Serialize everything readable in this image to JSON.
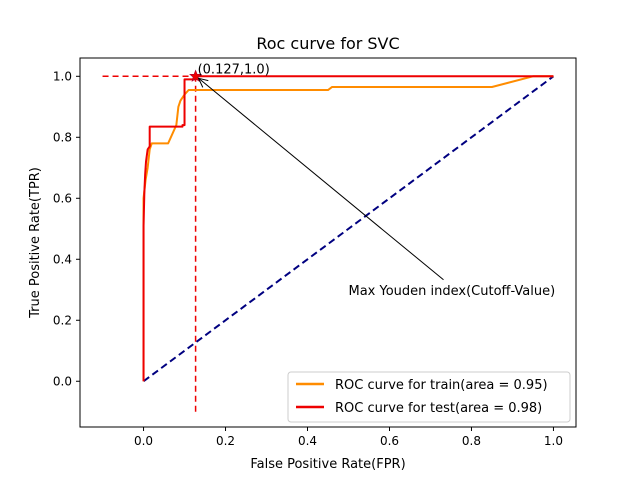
{
  "chart_data": {
    "type": "line",
    "title": "Roc curve for SVC",
    "xlabel": "False Positive Rate(FPR)",
    "ylabel": "True Positive Rate(TPR)",
    "xlim": [
      -0.155,
      1.055
    ],
    "ylim": [
      -0.15,
      1.06
    ],
    "xticks": [
      0.0,
      0.2,
      0.4,
      0.6,
      0.8,
      1.0
    ],
    "xtick_labels": [
      "0.0",
      "0.2",
      "0.4",
      "0.6",
      "0.8",
      "1.0"
    ],
    "yticks": [
      0.0,
      0.2,
      0.4,
      0.6,
      0.8,
      1.0
    ],
    "ytick_labels": [
      "0.0",
      "0.2",
      "0.4",
      "0.6",
      "0.8",
      "1.0"
    ],
    "grid": false,
    "legend_position": "lower-right",
    "series": [
      {
        "name": "ROC curve for train(area = 0.95)",
        "color": "#ff8c00",
        "style": "solid",
        "x": [
          0.0,
          0.0,
          0.005,
          0.01,
          0.015,
          0.02,
          0.05,
          0.06,
          0.08,
          0.085,
          0.09,
          0.1,
          0.11,
          0.12,
          0.45,
          0.46,
          0.85,
          0.95,
          1.0
        ],
        "y": [
          0.0,
          0.6,
          0.66,
          0.7,
          0.76,
          0.78,
          0.78,
          0.78,
          0.84,
          0.9,
          0.92,
          0.94,
          0.955,
          0.955,
          0.955,
          0.965,
          0.965,
          1.0,
          1.0
        ]
      },
      {
        "name": "ROC curve for test(area = 0.98)",
        "color": "#ee0000",
        "style": "solid",
        "x": [
          0.0,
          0.0,
          0.002,
          0.004,
          0.006,
          0.01,
          0.015,
          0.015,
          0.095,
          0.095,
          0.1,
          0.1,
          0.127,
          0.127,
          1.0
        ],
        "y": [
          0.0,
          0.51,
          0.62,
          0.68,
          0.72,
          0.76,
          0.77,
          0.835,
          0.835,
          0.84,
          0.84,
          0.99,
          0.99,
          1.0,
          1.0
        ]
      },
      {
        "color": "#000080",
        "style": "dashed",
        "x": [
          0.0,
          1.0
        ],
        "y": [
          0.0,
          1.0
        ]
      }
    ],
    "cutoff_lines": {
      "color": "#ee0000",
      "vertical": {
        "x": 0.127,
        "y": [
          -0.1,
          1.0
        ]
      },
      "horizontal": {
        "y": 1.0,
        "x": [
          -0.1,
          0.127
        ]
      }
    },
    "marker": {
      "x": 0.127,
      "y": 1.0,
      "color": "#ee0000",
      "shape": "star"
    },
    "annotations": [
      {
        "text": "(0.127,1.0)",
        "x": 0.127,
        "y": 1.0
      },
      {
        "text": "Max Youden index(Cutoff-Value)",
        "text_x": 0.5,
        "text_y": 0.3,
        "arrow_to_x": 0.127,
        "arrow_to_y": 1.0
      }
    ]
  }
}
